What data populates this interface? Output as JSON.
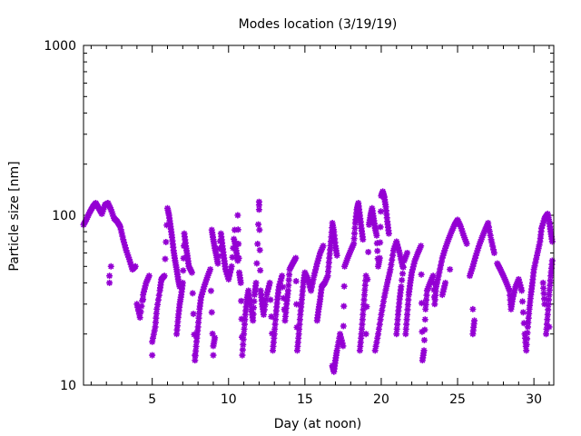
{
  "chart_data": {
    "type": "scatter",
    "title": "Modes location (3/19/19)",
    "xlabel": "Day (at noon)",
    "ylabel": "Particle size [nm]",
    "xlim": [
      0.5,
      31.3
    ],
    "ylim": [
      10,
      1000
    ],
    "yscale": "log",
    "xticks": [
      5,
      10,
      15,
      20,
      25,
      30
    ],
    "yticks": [
      10,
      100,
      1000
    ],
    "ytick_labels": [
      "10",
      "100",
      "1000"
    ],
    "marker": "star",
    "color": "#9400d3",
    "grid": false,
    "legend": "none",
    "series": [
      {
        "values": [
          [
            0.5,
            88
          ],
          [
            0.7,
            95
          ],
          [
            0.9,
            104
          ],
          [
            1.1,
            112
          ],
          [
            1.3,
            118
          ],
          [
            1.5,
            110
          ],
          [
            1.7,
            102
          ],
          [
            1.9,
            115
          ],
          [
            2.1,
            118
          ],
          [
            2.3,
            108
          ],
          [
            2.5,
            96
          ],
          [
            2.7,
            92
          ],
          [
            2.9,
            86
          ],
          [
            3.1,
            72
          ],
          [
            3.3,
            62
          ],
          [
            3.5,
            55
          ],
          [
            3.7,
            48
          ],
          [
            3.9,
            50
          ],
          [
            2.3,
            50
          ],
          [
            2.2,
            44
          ],
          [
            2.2,
            40
          ],
          [
            4.0,
            30
          ],
          [
            4.2,
            25
          ],
          [
            4.4,
            34
          ],
          [
            4.6,
            40
          ],
          [
            4.8,
            44
          ],
          [
            4.4,
            32
          ],
          [
            5.0,
            15
          ],
          [
            5.0,
            18
          ],
          [
            5.2,
            22
          ],
          [
            5.3,
            28
          ],
          [
            5.5,
            36
          ],
          [
            5.6,
            42
          ],
          [
            5.8,
            44
          ],
          [
            6.0,
            110
          ],
          [
            6.1,
            100
          ],
          [
            6.2,
            86
          ],
          [
            6.3,
            74
          ],
          [
            6.4,
            62
          ],
          [
            6.5,
            54
          ],
          [
            6.6,
            48
          ],
          [
            6.7,
            42
          ],
          [
            6.8,
            38
          ],
          [
            6.6,
            20
          ],
          [
            6.7,
            25
          ],
          [
            6.8,
            30
          ],
          [
            6.9,
            34
          ],
          [
            7.0,
            40
          ],
          [
            7.1,
            78
          ],
          [
            7.2,
            66
          ],
          [
            7.3,
            58
          ],
          [
            7.4,
            50
          ],
          [
            7.6,
            46
          ],
          [
            7.8,
            15
          ],
          [
            7.8,
            14
          ],
          [
            7.9,
            18
          ],
          [
            8.0,
            22
          ],
          [
            8.1,
            28
          ],
          [
            8.2,
            33
          ],
          [
            8.4,
            38
          ],
          [
            8.6,
            43
          ],
          [
            8.8,
            48
          ],
          [
            9.0,
            15
          ],
          [
            9.0,
            17
          ],
          [
            9.1,
            19
          ],
          [
            8.9,
            82
          ],
          [
            9.0,
            72
          ],
          [
            9.1,
            64
          ],
          [
            9.2,
            58
          ],
          [
            9.3,
            52
          ],
          [
            9.5,
            78
          ],
          [
            9.6,
            66
          ],
          [
            9.7,
            56
          ],
          [
            9.8,
            48
          ],
          [
            10.0,
            42
          ],
          [
            10.2,
            50
          ],
          [
            10.4,
            82
          ],
          [
            10.4,
            70
          ],
          [
            10.5,
            62
          ],
          [
            10.6,
            54
          ],
          [
            10.6,
            100
          ],
          [
            10.7,
            46
          ],
          [
            10.8,
            40
          ],
          [
            10.9,
            15
          ],
          [
            11.0,
            20
          ],
          [
            11.1,
            26
          ],
          [
            11.2,
            32
          ],
          [
            11.3,
            36
          ],
          [
            11.5,
            28
          ],
          [
            11.6,
            24
          ],
          [
            11.7,
            34
          ],
          [
            11.8,
            40
          ],
          [
            12.0,
            115
          ],
          [
            12.0,
            120
          ],
          [
            12.0,
            108
          ],
          [
            12.1,
            36
          ],
          [
            12.2,
            30
          ],
          [
            12.3,
            26
          ],
          [
            12.5,
            34
          ],
          [
            12.7,
            40
          ],
          [
            12.9,
            16
          ],
          [
            13.0,
            20
          ],
          [
            13.1,
            26
          ],
          [
            13.2,
            32
          ],
          [
            13.3,
            38
          ],
          [
            13.5,
            44
          ],
          [
            13.7,
            24
          ],
          [
            13.8,
            30
          ],
          [
            13.9,
            36
          ],
          [
            14.0,
            48
          ],
          [
            14.2,
            52
          ],
          [
            14.4,
            56
          ],
          [
            14.5,
            16
          ],
          [
            14.6,
            20
          ],
          [
            14.7,
            26
          ],
          [
            14.8,
            32
          ],
          [
            14.9,
            40
          ],
          [
            15.0,
            46
          ],
          [
            15.2,
            42
          ],
          [
            15.4,
            36
          ],
          [
            15.6,
            44
          ],
          [
            15.8,
            52
          ],
          [
            16.0,
            60
          ],
          [
            16.2,
            66
          ],
          [
            15.8,
            24
          ],
          [
            15.9,
            28
          ],
          [
            16.0,
            32
          ],
          [
            16.1,
            38
          ],
          [
            16.3,
            40
          ],
          [
            16.5,
            44
          ],
          [
            16.6,
            56
          ],
          [
            16.7,
            70
          ],
          [
            16.8,
            90
          ],
          [
            16.9,
            80
          ],
          [
            17.0,
            66
          ],
          [
            17.1,
            58
          ],
          [
            16.8,
            13
          ],
          [
            16.9,
            12
          ],
          [
            17.0,
            14
          ],
          [
            17.1,
            16
          ],
          [
            17.3,
            20
          ],
          [
            17.5,
            17
          ],
          [
            17.6,
            50
          ],
          [
            17.8,
            56
          ],
          [
            18.0,
            62
          ],
          [
            18.2,
            68
          ],
          [
            18.3,
            90
          ],
          [
            18.4,
            108
          ],
          [
            18.5,
            118
          ],
          [
            18.6,
            100
          ],
          [
            18.7,
            84
          ],
          [
            18.8,
            72
          ],
          [
            18.6,
            16
          ],
          [
            18.7,
            20
          ],
          [
            18.8,
            26
          ],
          [
            18.9,
            34
          ],
          [
            19.0,
            44
          ],
          [
            19.0,
            20
          ],
          [
            19.2,
            88
          ],
          [
            19.3,
            100
          ],
          [
            19.4,
            110
          ],
          [
            19.5,
            96
          ],
          [
            19.6,
            84
          ],
          [
            19.7,
            76
          ],
          [
            19.8,
            50
          ],
          [
            19.9,
            56
          ],
          [
            20.0,
            130
          ],
          [
            20.1,
            138
          ],
          [
            20.2,
            128
          ],
          [
            20.3,
            112
          ],
          [
            20.4,
            92
          ],
          [
            20.5,
            78
          ],
          [
            19.6,
            16
          ],
          [
            19.8,
            20
          ],
          [
            20.0,
            26
          ],
          [
            20.2,
            33
          ],
          [
            20.4,
            40
          ],
          [
            20.6,
            48
          ],
          [
            20.8,
            62
          ],
          [
            21.0,
            70
          ],
          [
            21.2,
            60
          ],
          [
            21.4,
            50
          ],
          [
            21.0,
            20
          ],
          [
            21.1,
            26
          ],
          [
            21.2,
            32
          ],
          [
            21.3,
            38
          ],
          [
            21.5,
            54
          ],
          [
            21.7,
            60
          ],
          [
            21.6,
            20
          ],
          [
            21.7,
            26
          ],
          [
            21.8,
            34
          ],
          [
            21.9,
            40
          ],
          [
            22.0,
            46
          ],
          [
            22.2,
            54
          ],
          [
            22.4,
            60
          ],
          [
            22.6,
            66
          ],
          [
            22.7,
            14
          ],
          [
            22.8,
            16
          ],
          [
            22.9,
            28
          ],
          [
            23.0,
            36
          ],
          [
            23.2,
            40
          ],
          [
            23.4,
            44
          ],
          [
            23.5,
            30
          ],
          [
            23.6,
            38
          ],
          [
            23.8,
            46
          ],
          [
            24.0,
            56
          ],
          [
            24.2,
            64
          ],
          [
            24.4,
            72
          ],
          [
            24.6,
            80
          ],
          [
            24.8,
            88
          ],
          [
            25.0,
            94
          ],
          [
            25.2,
            86
          ],
          [
            25.4,
            76
          ],
          [
            25.6,
            68
          ],
          [
            24.0,
            34
          ],
          [
            24.2,
            40
          ],
          [
            24.5,
            48
          ],
          [
            25.8,
            44
          ],
          [
            26.0,
            50
          ],
          [
            26.2,
            58
          ],
          [
            26.4,
            66
          ],
          [
            26.6,
            74
          ],
          [
            26.8,
            82
          ],
          [
            27.0,
            90
          ],
          [
            27.2,
            72
          ],
          [
            27.4,
            60
          ],
          [
            26.0,
            28
          ],
          [
            26.0,
            20
          ],
          [
            26.1,
            24
          ],
          [
            27.6,
            52
          ],
          [
            27.8,
            48
          ],
          [
            28.0,
            44
          ],
          [
            28.2,
            40
          ],
          [
            28.4,
            36
          ],
          [
            28.5,
            28
          ],
          [
            28.6,
            32
          ],
          [
            28.8,
            38
          ],
          [
            29.0,
            42
          ],
          [
            29.2,
            36
          ],
          [
            29.4,
            20
          ],
          [
            29.5,
            16
          ],
          [
            29.6,
            22
          ],
          [
            29.7,
            28
          ],
          [
            29.8,
            34
          ],
          [
            29.9,
            40
          ],
          [
            30.0,
            48
          ],
          [
            30.2,
            58
          ],
          [
            30.4,
            70
          ],
          [
            30.5,
            84
          ],
          [
            30.7,
            96
          ],
          [
            30.9,
            102
          ],
          [
            31.0,
            92
          ],
          [
            31.1,
            80
          ],
          [
            31.2,
            70
          ],
          [
            30.8,
            20
          ],
          [
            30.9,
            26
          ],
          [
            31.0,
            34
          ],
          [
            31.1,
            44
          ],
          [
            31.2,
            54
          ],
          [
            30.6,
            40
          ],
          [
            30.7,
            30
          ],
          [
            31.0,
            22
          ]
        ]
      }
    ]
  }
}
